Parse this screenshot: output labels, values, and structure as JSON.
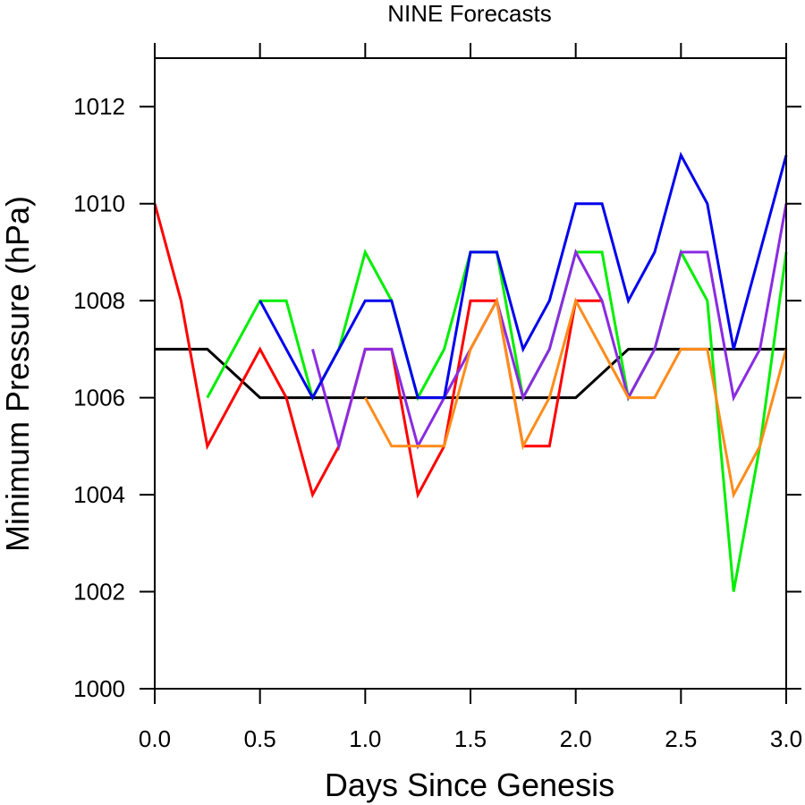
{
  "chart_data": {
    "type": "line",
    "title": "NINE Forecasts",
    "xlabel": "Days Since Genesis",
    "ylabel": "Minimum Pressure (hPa)",
    "xlim": [
      0,
      3
    ],
    "ylim": [
      1000,
      1013
    ],
    "x_ticks": [
      0.0,
      0.5,
      1.0,
      1.5,
      2.0,
      2.5,
      3.0
    ],
    "x_tick_labels": [
      "0.0",
      "0.5",
      "1.0",
      "1.5",
      "2.0",
      "2.5",
      "3.0"
    ],
    "y_ticks": [
      1000,
      1002,
      1004,
      1006,
      1008,
      1010,
      1012
    ],
    "y_tick_labels": [
      "1000",
      "1002",
      "1004",
      "1006",
      "1008",
      "1010",
      "1012"
    ],
    "grid": false,
    "series": [
      {
        "color": "#000000",
        "x": [
          0,
          0.25,
          0.5,
          0.75,
          1.0,
          1.25,
          1.5,
          1.75,
          2.0,
          2.25,
          2.5,
          2.75,
          3.0
        ],
        "values": [
          1007,
          1007,
          1006,
          1006,
          1006,
          1006,
          1006,
          1006,
          1006,
          1007,
          1007,
          1007,
          1007
        ]
      },
      {
        "color": "#ff0000",
        "x": [
          0,
          0.125,
          0.25,
          0.5,
          0.625,
          0.75,
          0.875,
          1.0,
          1.125,
          1.25,
          1.375,
          1.5,
          1.625,
          1.75,
          1.875,
          2.0,
          2.125
        ],
        "values": [
          1010,
          1008,
          1005,
          1007,
          1006,
          1004,
          1005,
          1007,
          1007,
          1004,
          1005,
          1008,
          1008,
          1005,
          1005,
          1008,
          1008
        ]
      },
      {
        "color": "#00ee00",
        "x": [
          0.25,
          0.5,
          0.625,
          0.75,
          0.875,
          1.0,
          1.125,
          1.25,
          1.375,
          1.5,
          1.625,
          1.75,
          1.875,
          2.0,
          2.125,
          2.25,
          2.375,
          2.5,
          2.625,
          2.75,
          2.875,
          3.0
        ],
        "values": [
          1006,
          1008,
          1008,
          1006,
          1007,
          1009,
          1008,
          1006,
          1007,
          1009,
          1009,
          1006,
          1007,
          1009,
          1009,
          1006,
          1007,
          1009,
          1008,
          1002,
          1005,
          1009
        ]
      },
      {
        "color": "#8a2be2",
        "x": [
          0.75,
          0.875,
          1.0,
          1.125,
          1.25,
          1.375,
          1.5,
          1.625,
          1.75,
          1.875,
          2.0,
          2.125,
          2.25,
          2.375,
          2.5,
          2.625,
          2.75,
          2.875,
          3.0
        ],
        "values": [
          1007,
          1005,
          1007,
          1007,
          1005,
          1006,
          1007,
          1008,
          1006,
          1007,
          1009,
          1008,
          1006,
          1007,
          1009,
          1009,
          1006,
          1007,
          1010
        ]
      },
      {
        "color": "#ff8c1a",
        "x": [
          1.0,
          1.125,
          1.25,
          1.375,
          1.5,
          1.625,
          1.75,
          1.875,
          2.0,
          2.125,
          2.25,
          2.375,
          2.5,
          2.625,
          2.75,
          2.875,
          3.0
        ],
        "values": [
          1006,
          1005,
          1005,
          1005,
          1007,
          1008,
          1005,
          1006,
          1008,
          1007,
          1006,
          1006,
          1007,
          1007,
          1004,
          1005,
          1007
        ]
      },
      {
        "color": "#0000ee",
        "x": [
          0.5,
          0.75,
          1.0,
          1.125,
          1.25,
          1.375,
          1.5,
          1.625,
          1.75,
          1.875,
          2.0,
          2.125,
          2.25,
          2.375,
          2.5,
          2.625,
          2.75,
          2.875,
          3.0
        ],
        "values": [
          1008,
          1006,
          1008,
          1008,
          1006,
          1006,
          1009,
          1009,
          1007,
          1008,
          1010,
          1010,
          1008,
          1009,
          1011,
          1010,
          1007,
          1009,
          1011
        ]
      }
    ]
  }
}
